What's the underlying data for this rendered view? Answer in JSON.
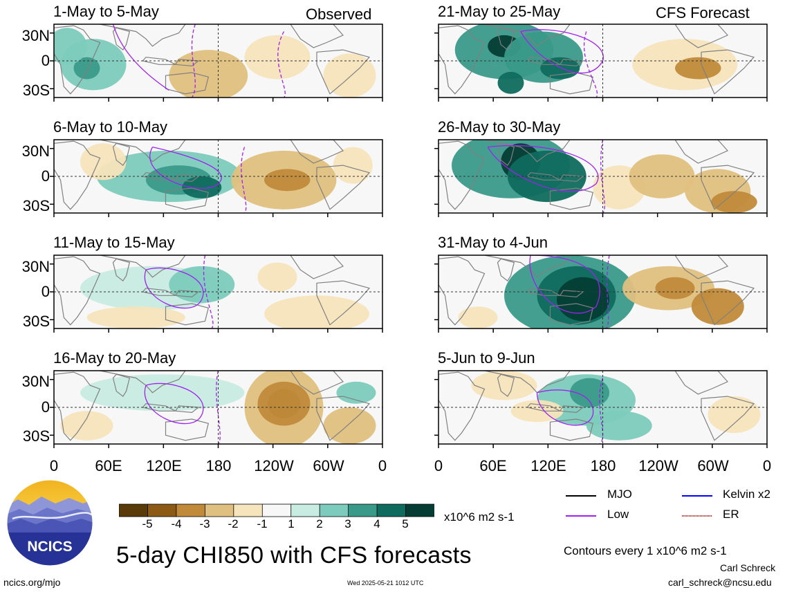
{
  "header": {
    "left_label": "Observed",
    "right_label": "CFS Forecast"
  },
  "panels_left": [
    {
      "title": "1-May to 5-May"
    },
    {
      "title": "6-May to 10-May"
    },
    {
      "title": "11-May to 15-May"
    },
    {
      "title": "16-May to 20-May"
    }
  ],
  "panels_right": [
    {
      "title": "21-May to 25-May"
    },
    {
      "title": "26-May to 30-May"
    },
    {
      "title": "31-May to 4-Jun"
    },
    {
      "title": "5-Jun to 9-Jun"
    }
  ],
  "lat_labels": [
    "30N",
    "0",
    "30S"
  ],
  "lon_labels": [
    "0",
    "60E",
    "120E",
    "180",
    "120W",
    "60W",
    "0"
  ],
  "colorbar": {
    "ticks": [
      "-5",
      "-4",
      "-3",
      "-2",
      "-1",
      "1",
      "2",
      "3",
      "4",
      "5"
    ],
    "units": "x10^6 m2 s-1",
    "colors": [
      "#5a3a08",
      "#8c5a14",
      "#c08a3a",
      "#e0c080",
      "#f5e4bc",
      "#f7f7f7",
      "#c8ebe2",
      "#7ccbbc",
      "#3a9a8a",
      "#0f6b5e",
      "#053d35"
    ]
  },
  "legend": {
    "items": [
      {
        "label": "MJO",
        "color": "#000000"
      },
      {
        "label": "Kelvin x2",
        "color": "#0000ff"
      },
      {
        "label": "Low",
        "color": "#a020f0"
      },
      {
        "label": "ER",
        "color": "#ff0000"
      }
    ],
    "contours_note": "Contours every 1 x10^6 m2 s-1"
  },
  "footer": {
    "main_title": "5-day CHI850 with CFS forecasts",
    "site": "ncics.org/mjo",
    "timestamp": "Wed 2025-05-21 1012 UTC",
    "author": "Carl Schreck",
    "email": "carl_schreck@ncsu.edu",
    "logo_text": "NCICS"
  }
}
